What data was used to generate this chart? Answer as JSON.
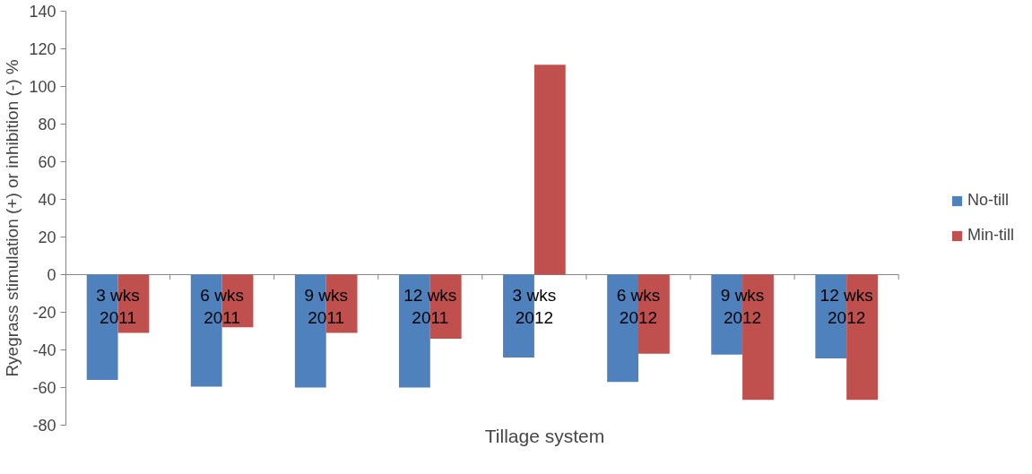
{
  "chart_data": {
    "type": "bar",
    "xlabel": "Tillage system",
    "ylabel": "Ryegrass stimulation (+) or inhibition (-) %",
    "categories": [
      "3 wks 2011",
      "6 wks 2011",
      "9 wks 2011",
      "12 wks 2011",
      "3 wks 2012",
      "6 wks 2012",
      "9 wks 2012",
      "12 wks 2012"
    ],
    "series": [
      {
        "name": "No-till",
        "color": "#4f81bd",
        "values": [
          -56,
          -59.5,
          -60,
          -60,
          -44,
          -57,
          -42.5,
          -44.5
        ]
      },
      {
        "name": "Min-till",
        "color": "#c0504d",
        "values": [
          -31,
          -28,
          -31,
          -34,
          111.5,
          -42,
          -66.5,
          -66.5
        ]
      }
    ],
    "ylim": [
      -80,
      140
    ],
    "yticks": [
      -80,
      -60,
      -40,
      -20,
      0,
      20,
      40,
      60,
      80,
      100,
      120,
      140
    ],
    "grid": false,
    "legend": "right"
  }
}
